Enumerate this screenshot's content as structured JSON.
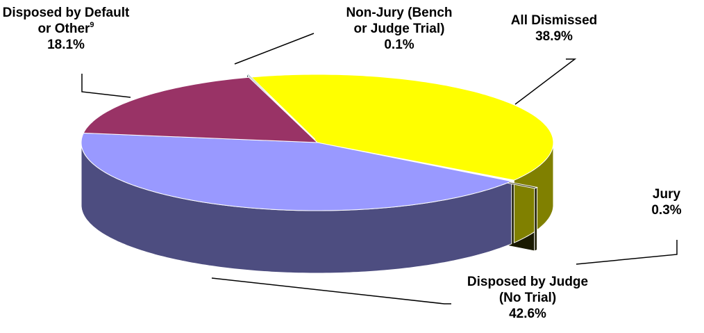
{
  "chart_data": {
    "type": "pie",
    "categories": [
      "All Dismissed",
      "Jury",
      "Disposed by Judge (No Trial)",
      "Disposed by Default or Other",
      "Non-Jury (Bench or Judge Trial)"
    ],
    "superscripts": [
      null,
      null,
      null,
      "9",
      null
    ],
    "values": [
      38.9,
      0.3,
      42.6,
      18.1,
      0.1
    ],
    "value_labels": [
      "38.9%",
      "0.3%",
      "42.6%",
      "18.1%",
      "0.1%"
    ],
    "colors": [
      "#ffff00",
      "#333300",
      "#9999ff",
      "#993366",
      "#669999"
    ]
  }
}
